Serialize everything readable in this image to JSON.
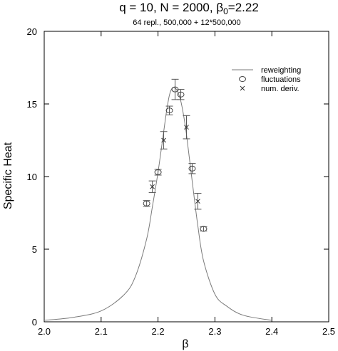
{
  "chart_data": {
    "type": "line",
    "title_main": "q = 10, N = 2000, ",
    "title_beta": "β",
    "title_sub0": "0",
    "title_value": "=2.22",
    "subtitle": "64 repl., 500,000 + 12*500,000",
    "xlabel": "β",
    "ylabel": "Specific Heat",
    "xlim": [
      2.0,
      2.5
    ],
    "ylim": [
      0,
      20
    ],
    "xticks": [
      2.0,
      2.1,
      2.2,
      2.3,
      2.4,
      2.5
    ],
    "xtick_labels": [
      "2.0",
      "2.1",
      "2.2",
      "2.3",
      "2.4",
      "2.5"
    ],
    "yticks": [
      0,
      5,
      10,
      15,
      20
    ],
    "ytick_labels": [
      "0",
      "5",
      "10",
      "15",
      "20"
    ],
    "legend_position": "top-right",
    "series": [
      {
        "name": "reweighting",
        "kind": "line",
        "color": "#7a7a7a",
        "x": [
          2.0,
          2.05,
          2.1,
          2.14,
          2.16,
          2.18,
          2.19,
          2.2,
          2.21,
          2.215,
          2.22,
          2.225,
          2.23,
          2.235,
          2.24,
          2.245,
          2.25,
          2.26,
          2.27,
          2.28,
          2.3,
          2.32,
          2.35,
          2.4
        ],
        "y": [
          0.1,
          0.3,
          0.75,
          1.85,
          3.1,
          5.7,
          7.9,
          10.3,
          13.1,
          14.5,
          15.6,
          16.1,
          16.1,
          15.8,
          15.2,
          14.2,
          12.9,
          9.7,
          6.6,
          4.2,
          1.9,
          1.1,
          0.45,
          0.1
        ]
      },
      {
        "name": "fluctuations",
        "kind": "circle",
        "color": "#444444",
        "points": [
          {
            "x": 2.18,
            "y": 8.15,
            "err": 0.2
          },
          {
            "x": 2.2,
            "y": 10.3,
            "err": 0.2
          },
          {
            "x": 2.22,
            "y": 14.55,
            "err": 0.3
          },
          {
            "x": 2.23,
            "y": 16.0,
            "err": 0.7
          },
          {
            "x": 2.24,
            "y": 15.65,
            "err": 0.35
          },
          {
            "x": 2.26,
            "y": 10.55,
            "err": 0.35
          },
          {
            "x": 2.28,
            "y": 6.4,
            "err": 0.15
          }
        ]
      },
      {
        "name": "num. deriv.",
        "kind": "cross",
        "color": "#333333",
        "points": [
          {
            "x": 2.19,
            "y": 9.3,
            "err": 0.4
          },
          {
            "x": 2.21,
            "y": 12.5,
            "err": 0.6
          },
          {
            "x": 2.25,
            "y": 13.4,
            "err": 0.8
          },
          {
            "x": 2.27,
            "y": 8.3,
            "err": 0.55
          }
        ]
      }
    ]
  }
}
